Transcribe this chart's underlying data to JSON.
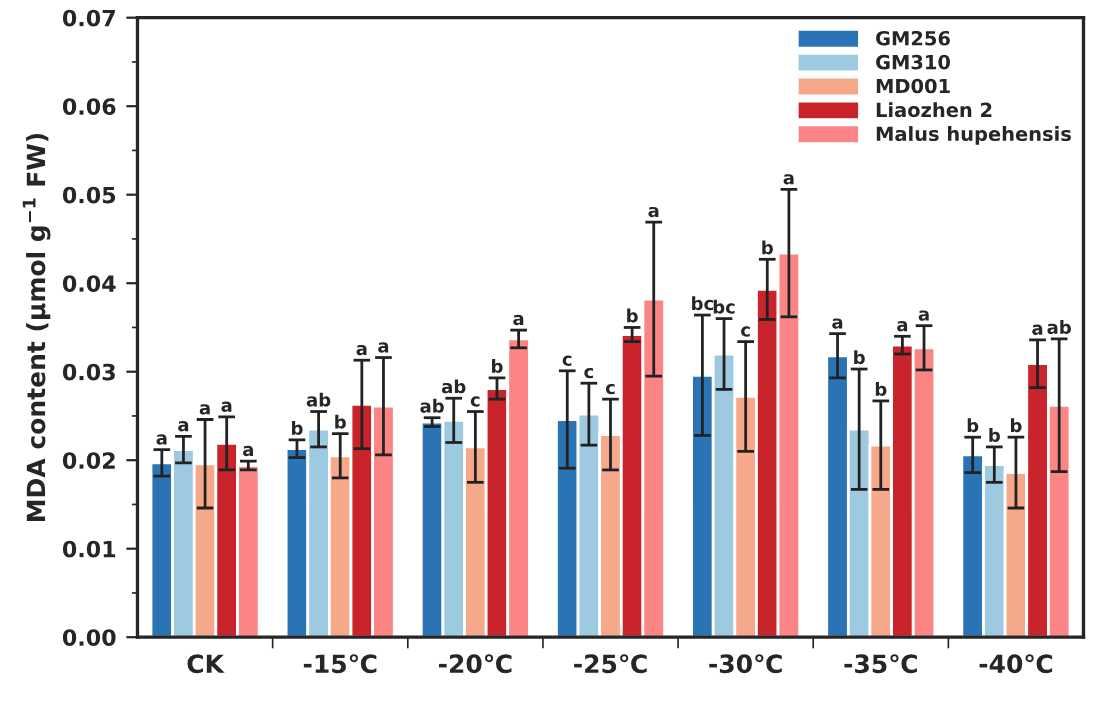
{
  "chart_data": {
    "type": "bar",
    "ylabel": "MDA content (μmol g$^{−1}$ FW)",
    "categories": [
      "CK",
      "-15℃",
      "-20℃",
      "-25℃",
      "-30℃",
      "-35℃",
      "-40℃"
    ],
    "series": [
      {
        "name": "GM256",
        "color": "#2a74b5",
        "values": [
          0.0197,
          0.0213,
          0.0243,
          0.0246,
          0.0296,
          0.0318,
          0.0206
        ],
        "errors": [
          0.0015,
          0.001,
          0.0005,
          0.0055,
          0.0068,
          0.0025,
          0.002
        ]
      },
      {
        "name": "GM310",
        "color": "#9ecae1",
        "values": [
          0.0212,
          0.0235,
          0.0245,
          0.0252,
          0.032,
          0.0235,
          0.0195
        ],
        "errors": [
          0.0015,
          0.002,
          0.0025,
          0.0035,
          0.004,
          0.0068,
          0.002
        ]
      },
      {
        "name": "MD001",
        "color": "#f6a98a",
        "values": [
          0.0196,
          0.0205,
          0.0215,
          0.0229,
          0.0272,
          0.0217,
          0.0186
        ],
        "errors": [
          0.005,
          0.0025,
          0.004,
          0.004,
          0.0062,
          0.005,
          0.004
        ]
      },
      {
        "name": "Liaozhen 2",
        "color": "#c9242b",
        "values": [
          0.0219,
          0.0263,
          0.0281,
          0.0342,
          0.0393,
          0.033,
          0.0309
        ],
        "errors": [
          0.003,
          0.005,
          0.0012,
          0.0008,
          0.0034,
          0.001,
          0.0027
        ]
      },
      {
        "name": "Malus hupehensis",
        "color": "#fb8484",
        "values": [
          0.0194,
          0.0261,
          0.0337,
          0.0382,
          0.0434,
          0.0327,
          0.0262
        ],
        "errors": [
          0.0005,
          0.0055,
          0.001,
          0.0087,
          0.0072,
          0.0025,
          0.0075
        ]
      }
    ],
    "ylim": [
      0,
      0.07
    ],
    "yticks": [
      {
        "value": 0,
        "label": "0.00"
      },
      {
        "value": 0.01,
        "label": "0.01"
      },
      {
        "value": 0.02,
        "label": "0.02"
      },
      {
        "value": 0.03,
        "label": "0.03"
      },
      {
        "value": 0.04,
        "label": "0.04"
      },
      {
        "value": 0.05,
        "label": "0.05"
      },
      {
        "value": 0.06,
        "label": "0.06"
      },
      {
        "value": 0.07,
        "label": "0.07"
      }
    ],
    "legend": "top right",
    "grid": false,
    "annotations": [
      "a",
      "a",
      "a",
      "a",
      "a",
      "b",
      "ab",
      "b",
      "a",
      "a",
      "ab",
      "ab",
      "c",
      "b",
      "a",
      "c",
      "c",
      "c",
      "b",
      "a",
      "bc",
      "bc",
      "c",
      "b",
      "a",
      "a",
      "b",
      "b",
      "a",
      "a",
      "b",
      "b",
      "b",
      "a",
      "ab"
    ]
  }
}
